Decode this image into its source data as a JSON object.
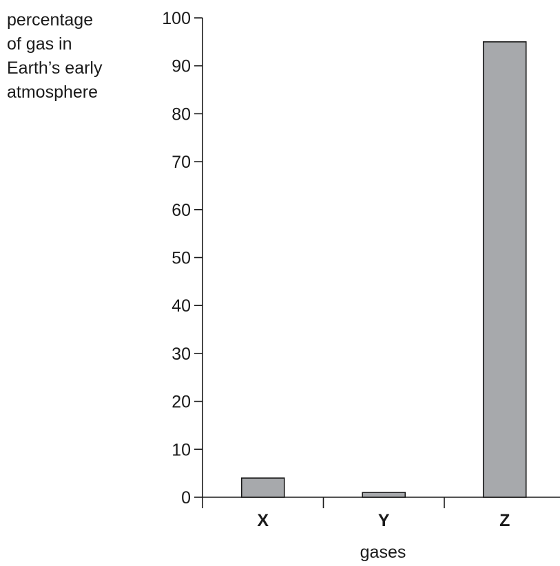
{
  "chart_data": {
    "type": "bar",
    "categories": [
      "X",
      "Y",
      "Z"
    ],
    "values": [
      4,
      1,
      95
    ],
    "ylabel_lines": [
      "percentage",
      "of gas in",
      "Earth’s early",
      "atmosphere"
    ],
    "xlabel": "gases",
    "y_ticks": [
      0,
      10,
      20,
      30,
      40,
      50,
      60,
      70,
      80,
      90,
      100
    ],
    "ylim": [
      0,
      100
    ],
    "grid": false,
    "legend": "none",
    "bar_color": "#a7a9ac",
    "bar_edge_color": "#1a1a1a",
    "axis_color": "#1a1a1a"
  }
}
